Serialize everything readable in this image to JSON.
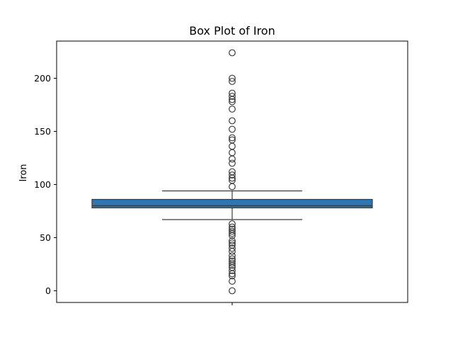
{
  "chart_data": {
    "type": "box",
    "title": "Box Plot of Iron",
    "xlabel": "",
    "ylabel": "Iron",
    "ylim": [
      -11,
      235
    ],
    "yticks": [
      0,
      50,
      100,
      150,
      200
    ],
    "grid": false,
    "box": {
      "q1": 78,
      "median": 80,
      "q3": 86,
      "whisker_low": 67,
      "whisker_high": 94,
      "color": "#2f77b4"
    },
    "outliers": [
      224,
      200,
      197,
      186,
      183,
      180,
      178,
      171,
      160,
      152,
      144,
      142,
      136,
      130,
      124,
      120,
      112,
      109,
      106,
      104,
      98,
      63,
      60,
      58,
      56,
      54,
      52,
      47,
      45,
      43,
      40,
      37,
      33,
      30,
      28,
      26,
      24,
      22,
      19,
      16,
      14,
      9,
      0
    ]
  }
}
